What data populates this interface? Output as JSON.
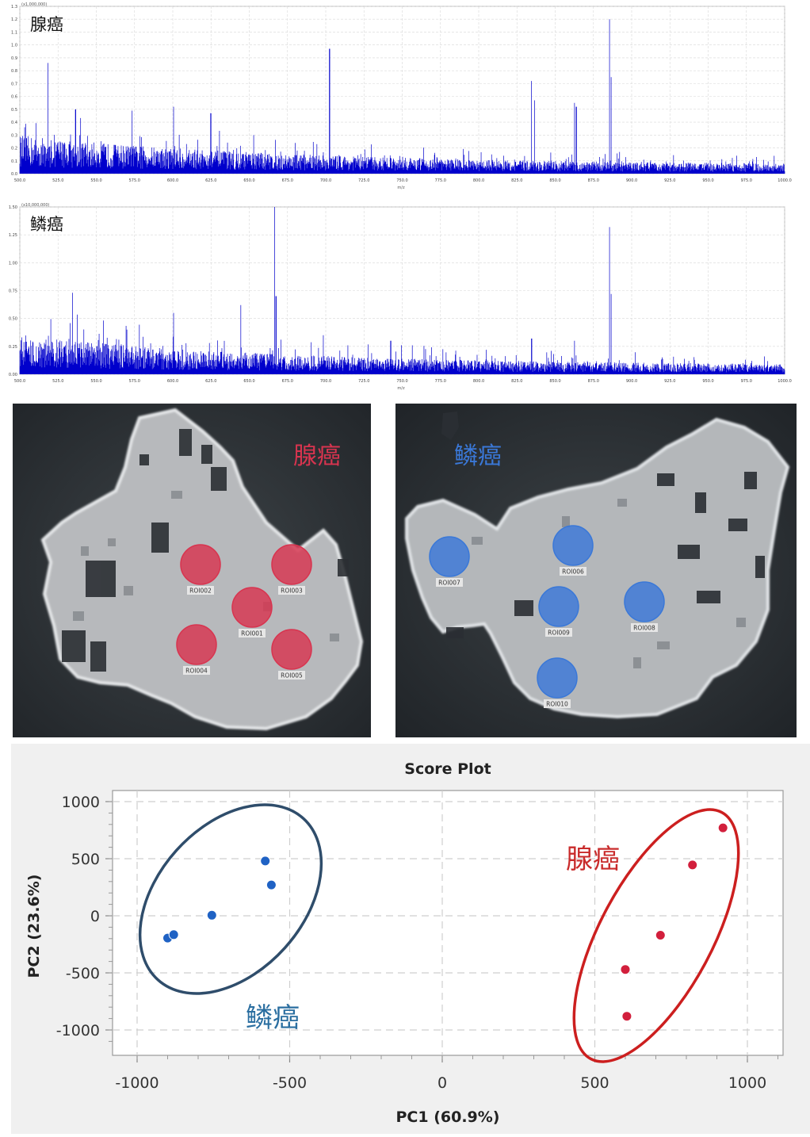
{
  "spectra": [
    {
      "label": "腺癌",
      "scale_note": "(x1,000,000)",
      "y_ticks": [
        "0.0",
        "0.1",
        "0.2",
        "0.3",
        "0.4",
        "0.5",
        "0.6",
        "0.7",
        "0.8",
        "0.9",
        "1.0",
        "1.1",
        "1.2",
        "1.3"
      ],
      "x_ticks": [
        "500.0",
        "525.0",
        "550.0",
        "575.0",
        "600.0",
        "625.0",
        "650.0",
        "675.0",
        "700.0",
        "725.0",
        "750.0",
        "775.0",
        "800.0",
        "825.0",
        "850.0",
        "875.0",
        "900.0",
        "925.0",
        "950.0",
        "975.0",
        "1000.0"
      ],
      "xlabel": "m/z"
    },
    {
      "label": "鳞癌",
      "scale_note": "(x10,000,000)",
      "y_ticks": [
        "0.00",
        "0.25",
        "0.50",
        "0.75",
        "1.00",
        "1.25",
        "1.50"
      ],
      "x_ticks": [
        "500.0",
        "525.0",
        "550.0",
        "575.0",
        "600.0",
        "625.0",
        "650.0",
        "675.0",
        "700.0",
        "725.0",
        "750.0",
        "775.0",
        "800.0",
        "825.0",
        "850.0",
        "875.0",
        "900.0",
        "925.0",
        "950.0",
        "975.0",
        "1000.0"
      ],
      "xlabel": "m/z"
    }
  ],
  "tissues": [
    {
      "label": "腺癌",
      "color": "#d8344f",
      "rois": [
        "ROI001",
        "ROI002",
        "ROI003",
        "ROI004",
        "ROI005"
      ]
    },
    {
      "label": "鳞癌",
      "color": "#3a78d8",
      "rois": [
        "ROI006",
        "ROI007",
        "ROI008",
        "ROI009",
        "ROI010"
      ]
    }
  ],
  "chart_data": [
    {
      "type": "line",
      "title": "",
      "xlabel": "m/z",
      "ylabel": "",
      "xlim": [
        500,
        1000
      ],
      "ylim": [
        0,
        1.3
      ],
      "y_multiplier": "x1,000,000",
      "series": [
        {
          "name": "腺癌",
          "major_peaks": [
            [
              518.5,
              0.86
            ],
            [
              536.4,
              0.5
            ],
            [
              573.4,
              0.49
            ],
            [
              600.6,
              0.52
            ],
            [
              624.9,
              0.47
            ],
            [
              702.5,
              0.97
            ],
            [
              834.5,
              0.72
            ],
            [
              836.5,
              0.57
            ],
            [
              862.6,
              0.55
            ],
            [
              863.8,
              0.52
            ],
            [
              885.6,
              1.2
            ],
            [
              886.6,
              0.75
            ]
          ]
        }
      ],
      "color": "#0000cc"
    },
    {
      "type": "line",
      "title": "",
      "xlabel": "m/z",
      "ylabel": "",
      "xlim": [
        500,
        1000
      ],
      "ylim": [
        0,
        1.5
      ],
      "y_multiplier": "x10,000,000",
      "series": [
        {
          "name": "鳞癌",
          "major_peaks": [
            [
              534.4,
              0.73
            ],
            [
              600.5,
              0.55
            ],
            [
              644.5,
              0.62
            ],
            [
              666.5,
              1.5
            ],
            [
              667.5,
              0.7
            ],
            [
              698.5,
              0.35
            ],
            [
              742.5,
              0.3
            ],
            [
              834.6,
              0.32
            ],
            [
              862.6,
              0.3
            ],
            [
              885.6,
              1.32
            ],
            [
              886.6,
              0.72
            ]
          ]
        }
      ],
      "color": "#0000cc"
    },
    {
      "type": "scatter",
      "title": "Score Plot",
      "xlabel": "PC1 (60.9%)",
      "ylabel": "PC2 (23.6%)",
      "xlim": [
        -1100,
        1100
      ],
      "ylim": [
        -1200,
        1100
      ],
      "x_ticks": [
        -1000,
        -500,
        0,
        500,
        1000
      ],
      "y_ticks": [
        1000,
        500,
        0,
        -500,
        -1000
      ],
      "grid": true,
      "series": [
        {
          "name": "鳞癌",
          "color": "#1f62c4",
          "points": [
            [
              -900,
              -195
            ],
            [
              -880,
              -165
            ],
            [
              -755,
              5
            ],
            [
              -580,
              480
            ],
            [
              -560,
              270
            ]
          ]
        },
        {
          "name": "腺癌",
          "color": "#d21f3c",
          "points": [
            [
              600,
              -470
            ],
            [
              605,
              -880
            ],
            [
              715,
              -170
            ],
            [
              820,
              445
            ],
            [
              920,
              770
            ]
          ]
        }
      ],
      "group_labels": [
        {
          "text": "鳞癌",
          "color": "#2a6ea0"
        },
        {
          "text": "腺癌",
          "color": "#c92b2b"
        }
      ]
    }
  ]
}
